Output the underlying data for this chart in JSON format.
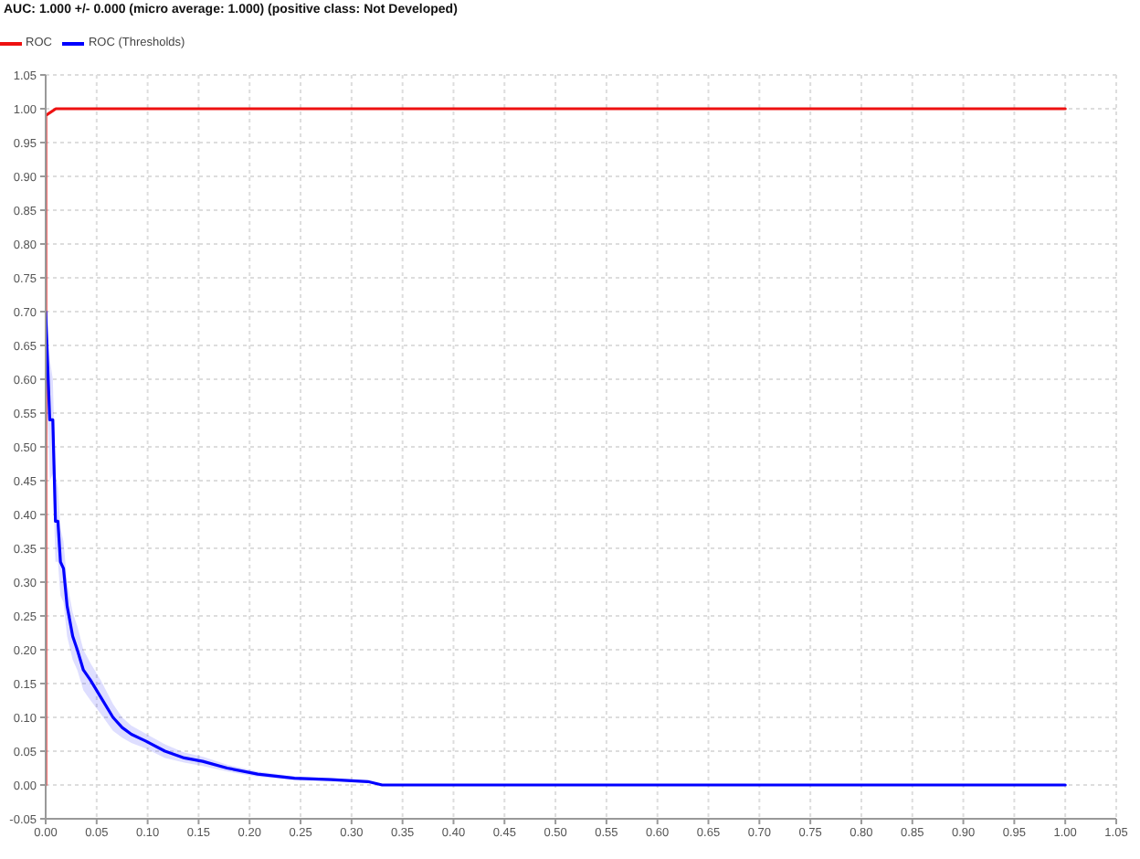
{
  "chart_data": {
    "type": "line",
    "title": "AUC: 1.000 +/- 0.000 (micro average: 1.000) (positive class: Not Developed)",
    "xlim": [
      0,
      1.05
    ],
    "ylim": [
      -0.05,
      1.05
    ],
    "xticks": [
      {
        "value": 0,
        "label": "0.00"
      },
      {
        "value": 0.05,
        "label": "0.05"
      },
      {
        "value": 0.1,
        "label": "0.10"
      },
      {
        "value": 0.15,
        "label": "0.15"
      },
      {
        "value": 0.2,
        "label": "0.20"
      },
      {
        "value": 0.25,
        "label": "0.25"
      },
      {
        "value": 0.3,
        "label": "0.30"
      },
      {
        "value": 0.35,
        "label": "0.35"
      },
      {
        "value": 0.4,
        "label": "0.40"
      },
      {
        "value": 0.45,
        "label": "0.45"
      },
      {
        "value": 0.5,
        "label": "0.50"
      },
      {
        "value": 0.55,
        "label": "0.55"
      },
      {
        "value": 0.6,
        "label": "0.60"
      },
      {
        "value": 0.65,
        "label": "0.65"
      },
      {
        "value": 0.7,
        "label": "0.70"
      },
      {
        "value": 0.75,
        "label": "0.75"
      },
      {
        "value": 0.8,
        "label": "0.80"
      },
      {
        "value": 0.85,
        "label": "0.85"
      },
      {
        "value": 0.9,
        "label": "0.90"
      },
      {
        "value": 0.95,
        "label": "0.95"
      },
      {
        "value": 1,
        "label": "1.00"
      },
      {
        "value": 1.05,
        "label": "1.05"
      }
    ],
    "yticks": [
      {
        "value": -0.05,
        "label": "-0.05"
      },
      {
        "value": 0,
        "label": "0.00"
      },
      {
        "value": 0.05,
        "label": "0.05"
      },
      {
        "value": 0.1,
        "label": "0.10"
      },
      {
        "value": 0.15,
        "label": "0.15"
      },
      {
        "value": 0.2,
        "label": "0.20"
      },
      {
        "value": 0.25,
        "label": "0.25"
      },
      {
        "value": 0.3,
        "label": "0.30"
      },
      {
        "value": 0.35,
        "label": "0.35"
      },
      {
        "value": 0.4,
        "label": "0.40"
      },
      {
        "value": 0.45,
        "label": "0.45"
      },
      {
        "value": 0.5,
        "label": "0.50"
      },
      {
        "value": 0.55,
        "label": "0.55"
      },
      {
        "value": 0.6,
        "label": "0.60"
      },
      {
        "value": 0.65,
        "label": "0.65"
      },
      {
        "value": 0.7,
        "label": "0.70"
      },
      {
        "value": 0.75,
        "label": "0.75"
      },
      {
        "value": 0.8,
        "label": "0.80"
      },
      {
        "value": 0.85,
        "label": "0.85"
      },
      {
        "value": 0.9,
        "label": "0.90"
      },
      {
        "value": 0.95,
        "label": "0.95"
      },
      {
        "value": 1,
        "label": "1.00"
      },
      {
        "value": 1.05,
        "label": "1.05"
      }
    ],
    "grid": true,
    "legend": "top left",
    "series": [
      {
        "name": "ROC",
        "color": "#ee1111",
        "x": [
          0,
          0,
          0.01,
          1
        ],
        "values": [
          0,
          0.99,
          1,
          1
        ]
      },
      {
        "name": "ROC (Thresholds)",
        "color": "#0000ff",
        "x": [
          0,
          0.004,
          0.007,
          0.0096,
          0.012,
          0.0145,
          0.0175,
          0.021,
          0.0265,
          0.031,
          0.037,
          0.044,
          0.054,
          0.066,
          0.075,
          0.084,
          0.098,
          0.117,
          0.136,
          0.154,
          0.178,
          0.208,
          0.244,
          0.28,
          0.316,
          0.33,
          1
        ],
        "values": [
          0.7,
          0.54,
          0.54,
          0.39,
          0.39,
          0.33,
          0.32,
          0.265,
          0.22,
          0.2,
          0.17,
          0.155,
          0.13,
          0.1,
          0.085,
          0.075,
          0.065,
          0.05,
          0.04,
          0.035,
          0.025,
          0.016,
          0.01,
          0.008,
          0.005,
          0,
          0
        ],
        "upper": [
          0.7,
          0.63,
          0.6,
          0.46,
          0.44,
          0.38,
          0.36,
          0.3,
          0.255,
          0.235,
          0.2,
          0.18,
          0.155,
          0.12,
          0.1,
          0.088,
          0.076,
          0.06,
          0.048,
          0.042,
          0.03,
          0.02,
          0.013,
          0.01,
          0.007,
          0,
          0
        ],
        "lower": [
          0.63,
          0.45,
          0.46,
          0.33,
          0.33,
          0.28,
          0.27,
          0.22,
          0.185,
          0.17,
          0.14,
          0.125,
          0.105,
          0.08,
          0.07,
          0.062,
          0.054,
          0.04,
          0.033,
          0.028,
          0.02,
          0.012,
          0.007,
          0.006,
          0.003,
          0,
          0
        ]
      }
    ]
  }
}
